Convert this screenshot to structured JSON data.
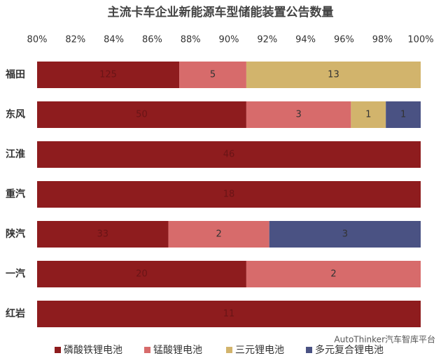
{
  "chart_data": {
    "type": "bar",
    "orientation": "horizontal",
    "stacking": "percent",
    "title": "主流卡车企业新能源车型储能装置公告数量",
    "categories": [
      "福田",
      "东风",
      "江淮",
      "重汽",
      "陕汽",
      "一汽",
      "红岩"
    ],
    "series": [
      {
        "name": "磷酸铁锂电池",
        "color": "#8e1c1e",
        "values": [
          125,
          50,
          46,
          18,
          33,
          20,
          11
        ]
      },
      {
        "name": "锰酸锂电池",
        "color": "#d76b6b",
        "values": [
          5,
          3,
          null,
          null,
          2,
          2,
          null
        ]
      },
      {
        "name": "三元锂电池",
        "color": "#d2b46c",
        "values": [
          13,
          1,
          null,
          null,
          null,
          null,
          null
        ]
      },
      {
        "name": "多元复合锂电池",
        "color": "#4a5283",
        "values": [
          null,
          1,
          null,
          null,
          3,
          null,
          null
        ]
      }
    ],
    "xlim": [
      80,
      100
    ],
    "xticks": [
      {
        "value": 80,
        "label": "80%"
      },
      {
        "value": 82,
        "label": "82%"
      },
      {
        "value": 84,
        "label": "84%"
      },
      {
        "value": 86,
        "label": "86%"
      },
      {
        "value": 88,
        "label": "88%"
      },
      {
        "value": 90,
        "label": "90%"
      },
      {
        "value": 92,
        "label": "92%"
      },
      {
        "value": 94,
        "label": "94%"
      },
      {
        "value": 96,
        "label": "96%"
      },
      {
        "value": 98,
        "label": "98%"
      },
      {
        "value": 100,
        "label": "100%"
      }
    ],
    "legend": "bottom",
    "watermark": "AutoThinker汽车智库平台"
  }
}
